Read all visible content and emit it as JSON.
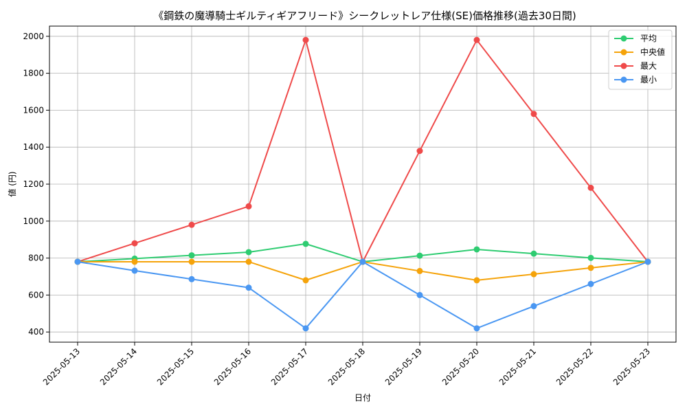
{
  "chart_data": {
    "type": "line",
    "title": "《鋼鉄の魔導騎士ギルティギアフリード》シークレットレア仕様(SE)価格推移(過去30日間)",
    "xlabel": "日付",
    "ylabel": "値 (円)",
    "categories": [
      "2025-05-13",
      "2025-05-14",
      "2025-05-15",
      "2025-05-16",
      "2025-05-17",
      "2025-05-18",
      "2025-05-19",
      "2025-05-20",
      "2025-05-21",
      "2025-05-22",
      "2025-05-23"
    ],
    "ylim": [
      345,
      2055
    ],
    "yticks": [
      400,
      600,
      800,
      1000,
      1200,
      1400,
      1600,
      1800,
      2000
    ],
    "grid": true,
    "legend_position": "top-right",
    "series": [
      {
        "name": "平均",
        "color": "#2ecc71",
        "values": [
          780,
          797,
          815,
          832,
          877,
          780,
          813,
          847,
          824,
          801,
          780
        ]
      },
      {
        "name": "中央値",
        "color": "#f5a30a",
        "values": [
          780,
          780,
          780,
          780,
          680,
          780,
          730,
          680,
          713,
          747,
          780
        ]
      },
      {
        "name": "最大",
        "color": "#ef4a4a",
        "values": [
          780,
          880,
          980,
          1080,
          1980,
          780,
          1380,
          1980,
          1580,
          1180,
          780
        ]
      },
      {
        "name": "最小",
        "color": "#4a97f2",
        "values": [
          780,
          732,
          686,
          640,
          420,
          780,
          600,
          420,
          540,
          660,
          780
        ]
      }
    ]
  }
}
